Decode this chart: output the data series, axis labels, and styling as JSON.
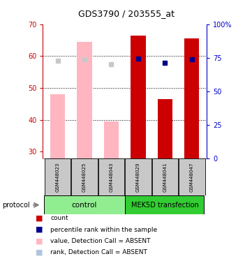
{
  "title": "GDS3790 / 203555_at",
  "samples": [
    "GSM448023",
    "GSM448025",
    "GSM448043",
    "GSM448029",
    "GSM448041",
    "GSM448047"
  ],
  "bar_values": [
    48.0,
    64.5,
    39.5,
    66.5,
    46.5,
    65.5
  ],
  "bar_colors": [
    "#FFB6C1",
    "#FFB6C1",
    "#FFB6C1",
    "#CC0000",
    "#CC0000",
    "#CC0000"
  ],
  "rank_values_pct": [
    72.5,
    73.5,
    70.0,
    74.0,
    71.0,
    73.5
  ],
  "rank_absent": [
    true,
    true,
    true,
    false,
    false,
    false
  ],
  "ylim_left": [
    28,
    70
  ],
  "ylim_right": [
    0,
    100
  ],
  "yticks_left": [
    30,
    40,
    50,
    60,
    70
  ],
  "yticks_right": [
    0,
    25,
    50,
    75,
    100
  ],
  "ytick_labels_right": [
    "0",
    "25",
    "50",
    "75",
    "100%"
  ],
  "left_axis_color": "#CC0000",
  "right_axis_color": "#0000CC",
  "ctrl_color": "#90EE90",
  "mek_color": "#32CD32",
  "sample_box_color": "#C8C8C8",
  "legend_items": [
    {
      "label": "count",
      "color": "#CC0000"
    },
    {
      "label": "percentile rank within the sample",
      "color": "#00008B"
    },
    {
      "label": "value, Detection Call = ABSENT",
      "color": "#FFB6C1"
    },
    {
      "label": "rank, Detection Call = ABSENT",
      "color": "#B0C4DE"
    }
  ],
  "bar_width": 0.55,
  "fig_width": 3.61,
  "fig_height": 3.84,
  "dpi": 100
}
